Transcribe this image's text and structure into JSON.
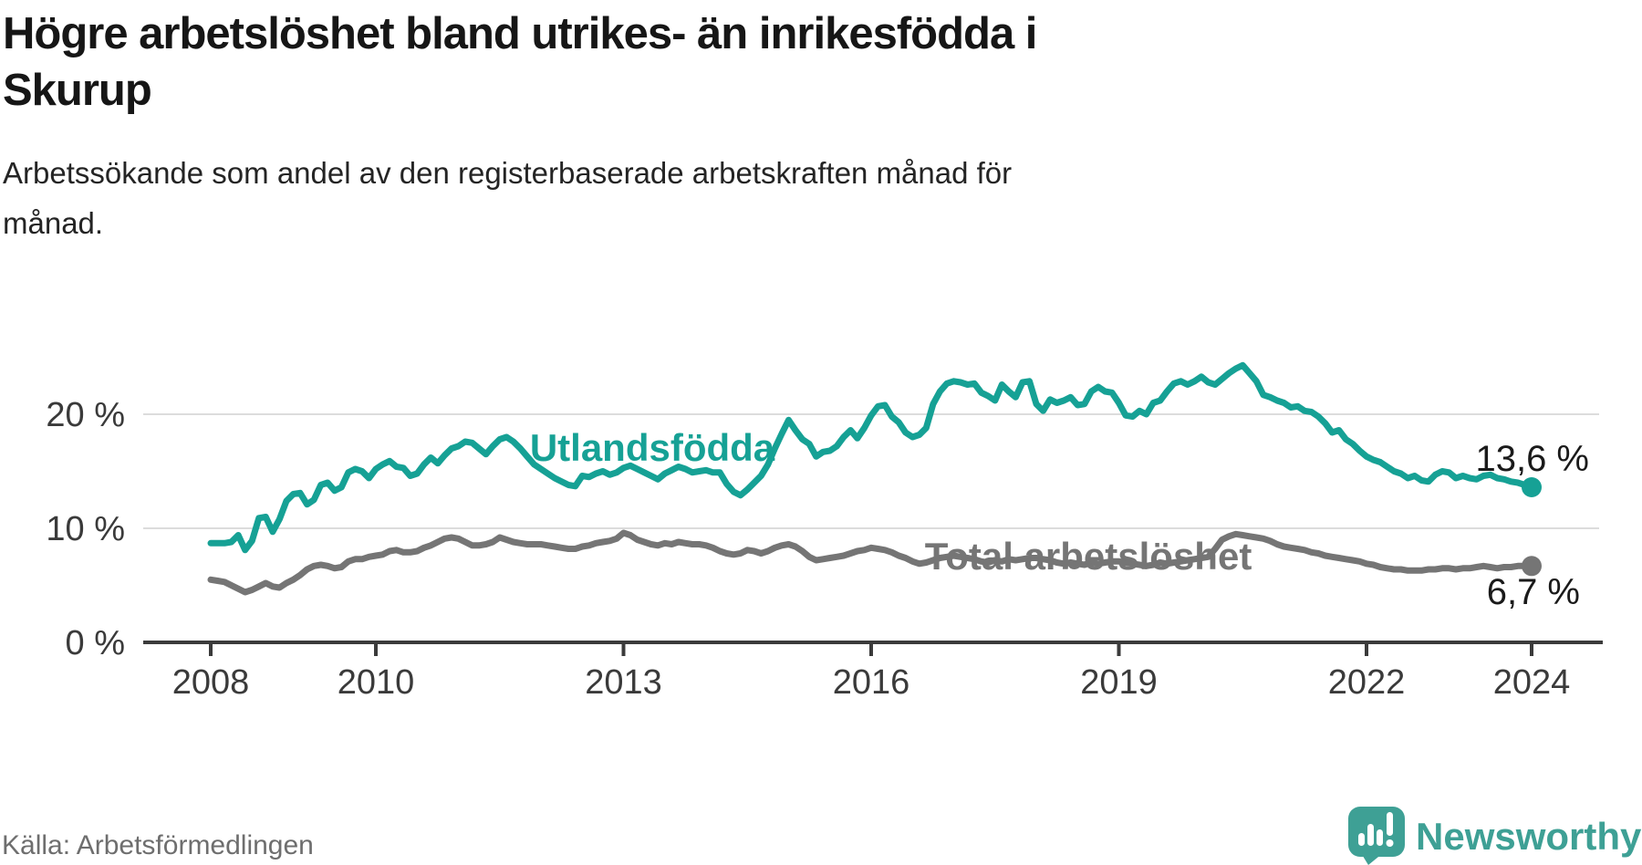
{
  "header": {
    "title_line1": "Högre arbetslöshet bland utrikes- än inrikesfödda i",
    "title_line2": "Skurup",
    "subtitle_line1": "Arbetssökande som andel av den registerbaserade arbetskraften månad för",
    "subtitle_line2": "månad."
  },
  "footer": {
    "source": "Källa: Arbetsförmedlingen",
    "brand": "Newsworthy"
  },
  "colors": {
    "accent_teal": "#16a195",
    "line_gray": "#757575",
    "value_label": "#1a1a1a",
    "brand_teal": "#3ea095",
    "grid": "#dcdcdc",
    "axis_text": "#3a3a3a"
  },
  "chart_data": {
    "type": "line",
    "title": "Högre arbetslöshet bland utrikes- än inrikesfödda i Skurup",
    "subtitle": "Arbetssökande som andel av den registerbaserade arbetskraften månad för månad.",
    "source": "Källa: Arbetsförmedlingen",
    "unit": "%",
    "legend_position": "inline",
    "grid": true,
    "x_axis": {
      "start": "2008-01",
      "end": "2024-01",
      "interval": "monthly",
      "ticks": [
        2008,
        2010,
        2013,
        2016,
        2019,
        2022,
        2024
      ]
    },
    "y_axis": {
      "ylim": [
        0,
        26
      ],
      "ticks": [
        {
          "value": 0,
          "label": "0 %"
        },
        {
          "value": 10,
          "label": "10 %"
        },
        {
          "value": 20,
          "label": "20 %"
        }
      ]
    },
    "series": [
      {
        "name": "Utlandsfödda",
        "color": "#16a195",
        "end_label": "13,6 %",
        "end_value": 13.6,
        "values": [
          8.7,
          8.7,
          8.7,
          8.8,
          9.4,
          8.1,
          8.9,
          10.9,
          11.0,
          9.7,
          10.8,
          12.4,
          13.0,
          13.1,
          12.1,
          12.5,
          13.8,
          14.0,
          13.3,
          13.6,
          14.9,
          15.2,
          15.0,
          14.4,
          15.2,
          15.6,
          15.9,
          15.4,
          15.3,
          14.6,
          14.8,
          15.6,
          16.2,
          15.7,
          16.4,
          17.0,
          17.2,
          17.6,
          17.5,
          17.0,
          16.5,
          17.2,
          17.8,
          18.0,
          17.6,
          17.0,
          16.3,
          15.6,
          15.2,
          14.8,
          14.4,
          14.1,
          13.8,
          13.7,
          14.6,
          14.5,
          14.8,
          15.0,
          14.7,
          14.9,
          15.3,
          15.5,
          15.2,
          14.9,
          14.6,
          14.3,
          14.8,
          15.1,
          15.4,
          15.2,
          14.9,
          15.0,
          15.1,
          14.9,
          14.9,
          13.9,
          13.2,
          12.9,
          13.4,
          14.0,
          14.6,
          15.6,
          17.0,
          18.3,
          19.5,
          18.6,
          17.8,
          17.4,
          16.3,
          16.7,
          16.8,
          17.2,
          18.0,
          18.6,
          17.9,
          18.8,
          19.9,
          20.7,
          20.8,
          19.8,
          19.3,
          18.4,
          18.0,
          18.2,
          18.8,
          20.9,
          22.0,
          22.7,
          22.9,
          22.8,
          22.6,
          22.7,
          21.9,
          21.6,
          21.2,
          22.6,
          22.0,
          21.5,
          22.8,
          22.9,
          20.9,
          20.3,
          21.3,
          21.0,
          21.2,
          21.5,
          20.8,
          20.9,
          22.0,
          22.4,
          22.0,
          21.9,
          21.0,
          19.9,
          19.8,
          20.3,
          20.0,
          21.0,
          21.2,
          22.0,
          22.7,
          22.9,
          22.6,
          22.9,
          23.3,
          22.8,
          22.6,
          23.1,
          23.6,
          24.0,
          24.3,
          23.6,
          22.9,
          21.7,
          21.5,
          21.2,
          21.0,
          20.6,
          20.7,
          20.3,
          20.2,
          19.8,
          19.2,
          18.4,
          18.6,
          17.8,
          17.4,
          16.8,
          16.3,
          16.0,
          15.8,
          15.4,
          15.0,
          14.8,
          14.4,
          14.6,
          14.2,
          14.1,
          14.7,
          15.0,
          14.9,
          14.4,
          14.6,
          14.4,
          14.3,
          14.6,
          14.7,
          14.4,
          14.3,
          14.1,
          14.0,
          13.8,
          13.6
        ]
      },
      {
        "name": "Total arbetslöshet",
        "color": "#757575",
        "end_label": "6,7 %",
        "end_value": 6.7,
        "values": [
          5.5,
          5.4,
          5.3,
          5.0,
          4.7,
          4.4,
          4.6,
          4.9,
          5.2,
          4.9,
          4.8,
          5.2,
          5.5,
          5.9,
          6.4,
          6.7,
          6.8,
          6.7,
          6.5,
          6.6,
          7.1,
          7.3,
          7.3,
          7.5,
          7.6,
          7.7,
          8.0,
          8.1,
          7.9,
          7.9,
          8.0,
          8.3,
          8.5,
          8.8,
          9.1,
          9.2,
          9.1,
          8.8,
          8.5,
          8.5,
          8.6,
          8.8,
          9.2,
          9.0,
          8.8,
          8.7,
          8.6,
          8.6,
          8.6,
          8.5,
          8.4,
          8.3,
          8.2,
          8.2,
          8.4,
          8.5,
          8.7,
          8.8,
          8.9,
          9.1,
          9.6,
          9.4,
          9.0,
          8.8,
          8.6,
          8.5,
          8.7,
          8.6,
          8.8,
          8.7,
          8.6,
          8.6,
          8.5,
          8.3,
          8.0,
          7.8,
          7.7,
          7.8,
          8.1,
          8.0,
          7.8,
          8.0,
          8.3,
          8.5,
          8.6,
          8.4,
          8.0,
          7.5,
          7.2,
          7.3,
          7.4,
          7.5,
          7.6,
          7.8,
          8.0,
          8.1,
          8.3,
          8.2,
          8.1,
          7.9,
          7.6,
          7.4,
          7.1,
          6.9,
          7.0,
          7.2,
          7.4,
          7.5,
          7.6,
          7.5,
          7.4,
          7.3,
          7.1,
          7.0,
          7.2,
          7.1,
          7.3,
          7.2,
          7.3,
          7.4,
          7.4,
          7.3,
          7.2,
          7.0,
          6.9,
          7.0,
          6.9,
          6.8,
          7.0,
          6.9,
          7.0,
          7.1,
          7.1,
          7.0,
          6.9,
          6.8,
          6.7,
          6.8,
          7.0,
          6.9,
          7.0,
          7.1,
          7.2,
          7.3,
          7.4,
          7.5,
          8.2,
          9.0,
          9.3,
          9.5,
          9.4,
          9.3,
          9.2,
          9.1,
          8.9,
          8.6,
          8.4,
          8.3,
          8.2,
          8.1,
          7.9,
          7.8,
          7.6,
          7.5,
          7.4,
          7.3,
          7.2,
          7.1,
          6.9,
          6.8,
          6.6,
          6.5,
          6.4,
          6.4,
          6.3,
          6.3,
          6.3,
          6.4,
          6.4,
          6.5,
          6.5,
          6.4,
          6.5,
          6.5,
          6.6,
          6.7,
          6.6,
          6.5,
          6.6,
          6.6,
          6.7,
          6.7,
          6.7
        ]
      }
    ]
  }
}
